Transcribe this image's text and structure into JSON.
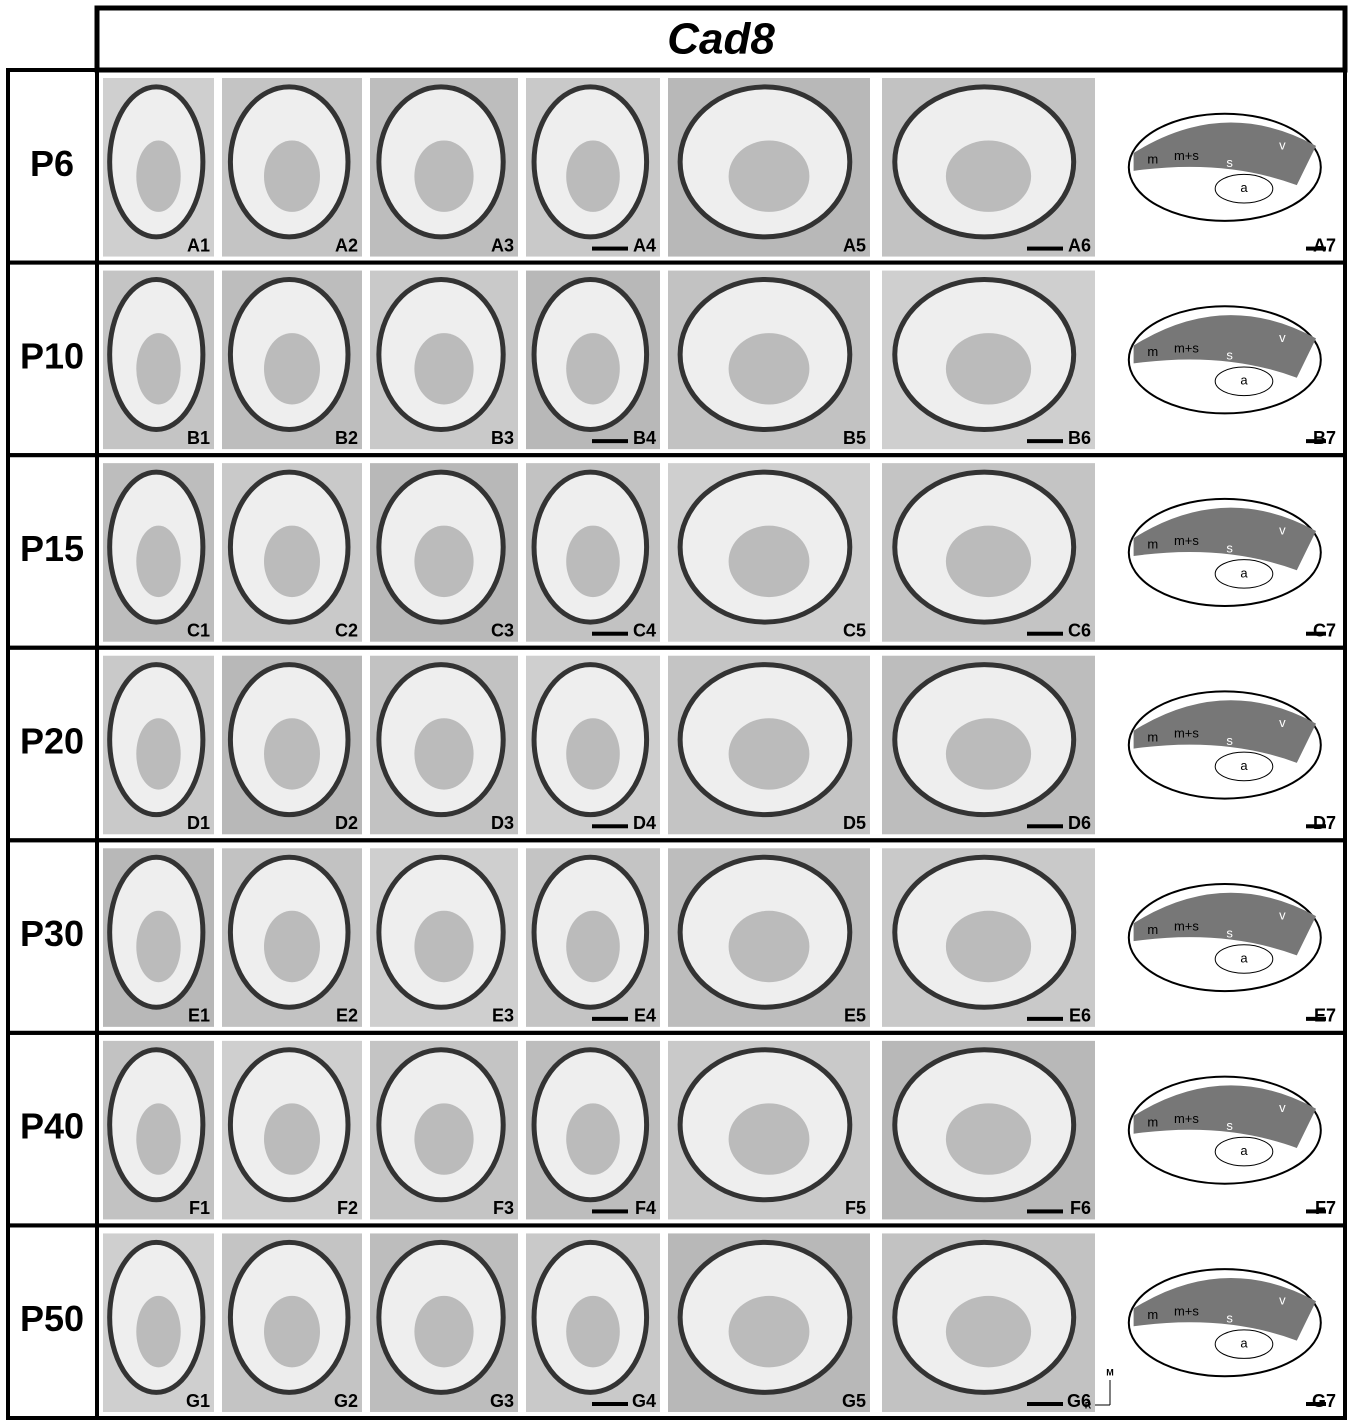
{
  "title": "Cad8",
  "rows": [
    {
      "label": "P6",
      "panels": [
        "A1",
        "A2",
        "A3",
        "A4",
        "A5",
        "A6",
        "A7"
      ],
      "schematic_labels": [
        "m",
        "m+s",
        "s",
        "v",
        "a"
      ]
    },
    {
      "label": "P10",
      "panels": [
        "B1",
        "B2",
        "B3",
        "B4",
        "B5",
        "B6",
        "B7"
      ],
      "schematic_labels": [
        "m",
        "m+s",
        "s",
        "v",
        "a"
      ]
    },
    {
      "label": "P15",
      "panels": [
        "C1",
        "C2",
        "C3",
        "C4",
        "C5",
        "C6",
        "C7"
      ],
      "schematic_labels": [
        "m",
        "m+s",
        "s",
        "v",
        "a"
      ]
    },
    {
      "label": "P20",
      "panels": [
        "D1",
        "D2",
        "D3",
        "D4",
        "D5",
        "D6",
        "D7"
      ],
      "schematic_labels": [
        "m",
        "m+s",
        "s",
        "v",
        "a"
      ]
    },
    {
      "label": "P30",
      "panels": [
        "E1",
        "E2",
        "E3",
        "E4",
        "E5",
        "E6",
        "E7"
      ],
      "schematic_labels": [
        "m",
        "m+s",
        "s",
        "v",
        "a"
      ]
    },
    {
      "label": "P40",
      "panels": [
        "F1",
        "F2",
        "F3",
        "F4",
        "F5",
        "F6",
        "F7"
      ],
      "schematic_labels": [
        "m",
        "m+s",
        "s",
        "v",
        "a"
      ]
    },
    {
      "label": "P50",
      "panels": [
        "G1",
        "G2",
        "G3",
        "G4",
        "G5",
        "G6",
        "G7"
      ],
      "schematic_labels": [
        "m",
        "m+s",
        "s",
        "v",
        "a"
      ]
    }
  ],
  "orientation": [
    "M",
    "R"
  ]
}
